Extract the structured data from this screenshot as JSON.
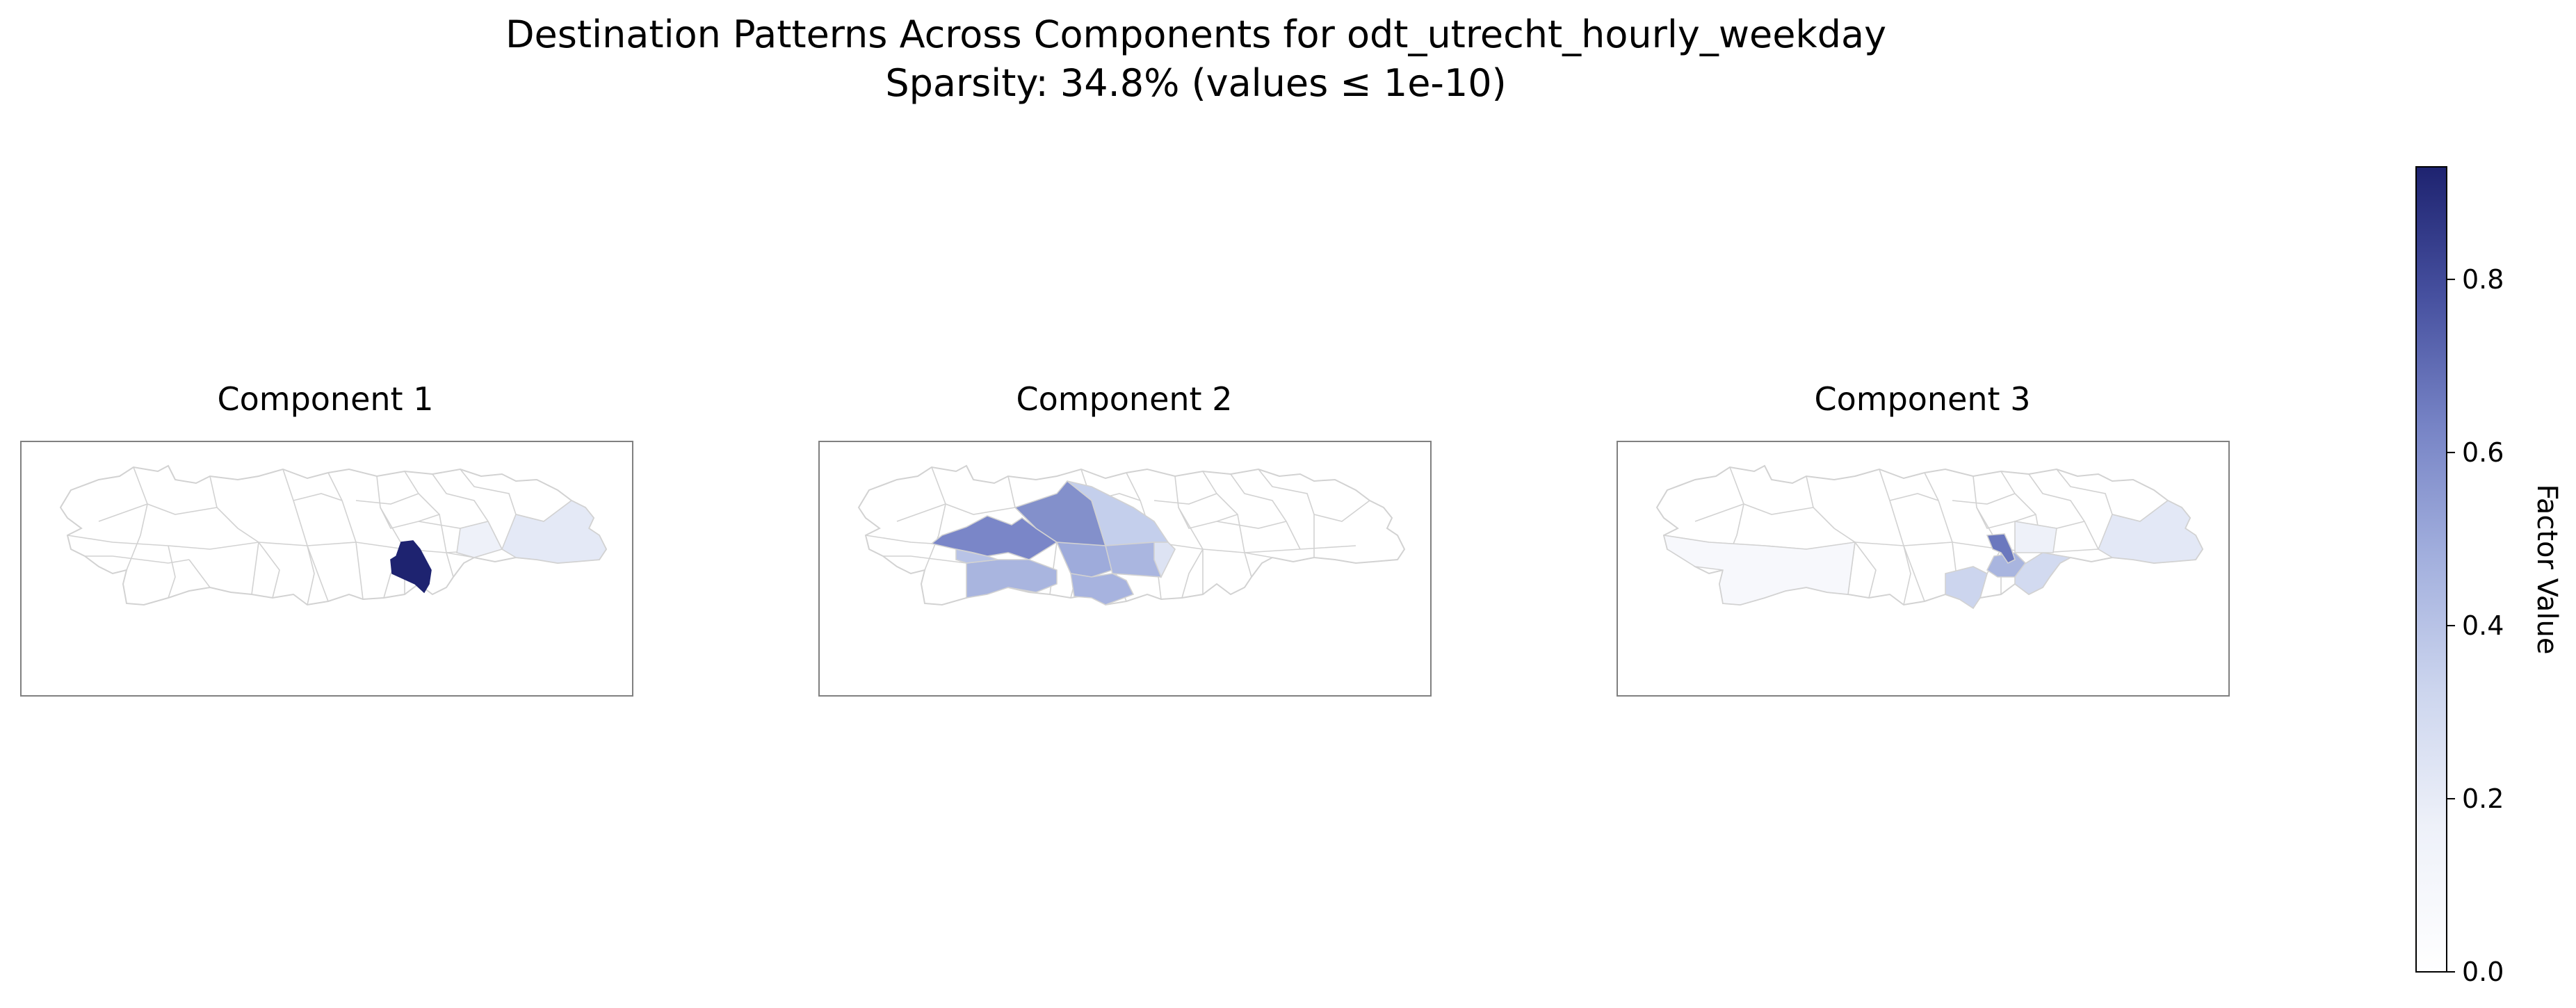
{
  "figure": {
    "title_line1": "Destination Patterns Across Components for odt_utrecht_hourly_weekday",
    "title_line2": "Sparsity: 34.8% (values ≤ 1e-10)"
  },
  "panels": [
    {
      "title": "Component 1",
      "max_region": "central-east",
      "max_value_est": 0.93
    },
    {
      "title": "Component 2",
      "max_region": "west",
      "max_value_est": 0.62
    },
    {
      "title": "Component 3",
      "max_region": "central-east",
      "max_value_est": 0.6
    }
  ],
  "colorbar": {
    "label": "Factor Value",
    "ticks": [
      "0.0",
      "0.2",
      "0.4",
      "0.6",
      "0.8"
    ],
    "tick_values": [
      0.0,
      0.2,
      0.4,
      0.6,
      0.8
    ],
    "range": [
      0.0,
      0.93
    ],
    "colormap": [
      "#ffffff",
      "#e8ecf7",
      "#c6d0ec",
      "#9eacdc",
      "#6f7cc0",
      "#3f4a9a",
      "#1e2370"
    ]
  }
}
